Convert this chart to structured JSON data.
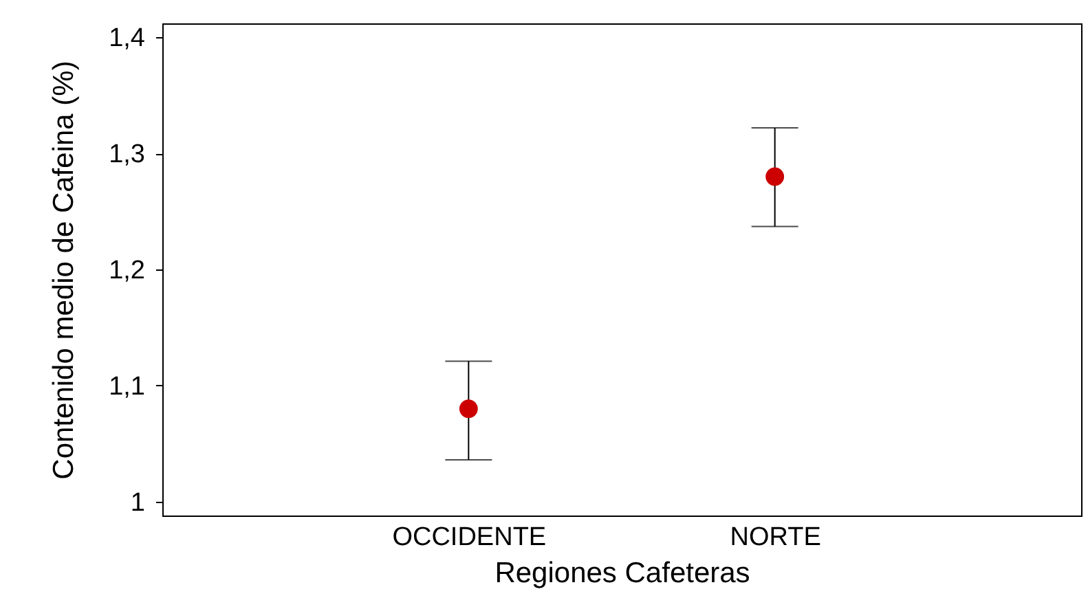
{
  "chart_data": {
    "type": "scatter",
    "xlabel": "Regiones Cafeteras",
    "ylabel": "Contenido medio de Cafeina (%)",
    "categories": [
      "OCCIDENTE",
      "NORTE"
    ],
    "series": [
      {
        "color": "#cc0000",
        "values": [
          1.08,
          1.28
        ],
        "errors": [
          [
            1.036,
            1.121
          ],
          [
            1.237,
            1.322
          ]
        ]
      }
    ],
    "ylim": [
      0.988,
      1.412
    ],
    "yticks": [
      {
        "value": 1,
        "label": "1"
      },
      {
        "value": 1.1,
        "label": "1,1"
      },
      {
        "value": 1.2,
        "label": "1,2"
      },
      {
        "value": 1.3,
        "label": "1,3"
      },
      {
        "value": 1.4,
        "label": "1,4"
      }
    ],
    "marker": "circle",
    "grid": false
  }
}
